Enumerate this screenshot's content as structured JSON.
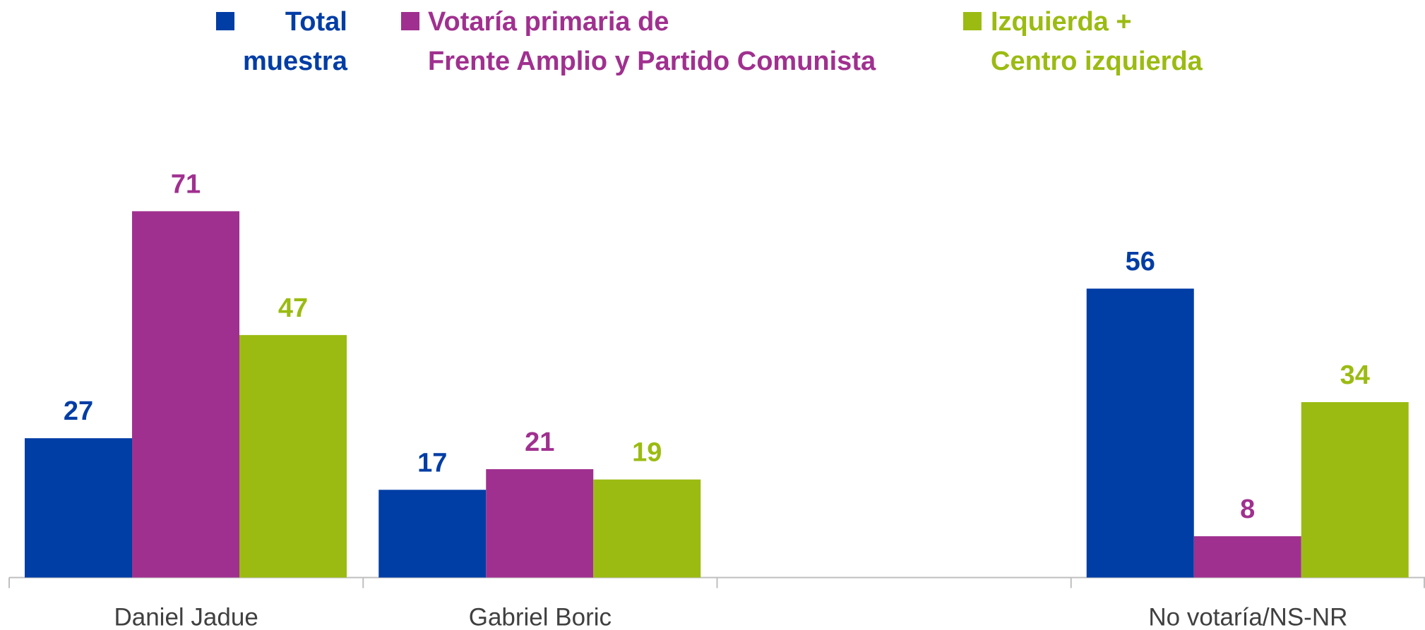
{
  "chart_data": {
    "type": "bar",
    "categories": [
      "Daniel Jadue",
      "Gabriel Boric",
      null,
      "No votaría/NS-NR"
    ],
    "series": [
      {
        "name": "Total\nmuestra",
        "color": "#003da5",
        "values": [
          27,
          17,
          null,
          56
        ]
      },
      {
        "name": "Votaría primaria de\nFrente Amplio y Partido Comunista",
        "color": "#a0308f",
        "values": [
          71,
          21,
          null,
          8
        ]
      },
      {
        "name": "Izquierda +\nCentro izquierda",
        "color": "#9bbb12",
        "values": [
          47,
          19,
          null,
          34
        ]
      }
    ],
    "ylim": [
      0,
      80
    ],
    "legend": "top",
    "grid": false
  }
}
